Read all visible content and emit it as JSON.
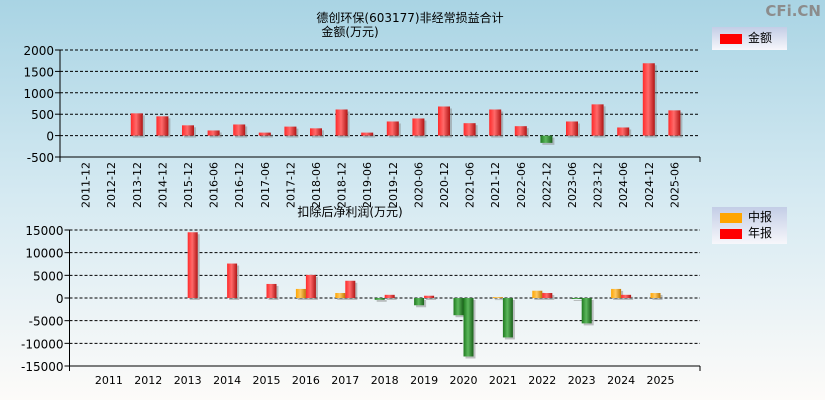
{
  "watermark": "CFi.CN",
  "chart_data": [
    {
      "type": "bar",
      "title": "德创环保(603177)非经常损益合计",
      "subtitle": "金额(万元)",
      "ylim": [
        -500,
        2000
      ],
      "yticks": [
        2000,
        1500,
        1000,
        500,
        0,
        -500
      ],
      "grid": true,
      "legend": "top-right",
      "categories": [
        "2011-12",
        "2012-12",
        "2013-12",
        "2014-12",
        "2015-12",
        "2016-06",
        "2016-12",
        "2017-06",
        "2017-12",
        "2018-06",
        "2018-12",
        "2019-06",
        "2019-12",
        "2020-06",
        "2020-12",
        "2021-06",
        "2021-12",
        "2022-06",
        "2022-12",
        "2023-06",
        "2023-12",
        "2024-06",
        "2024-12",
        "2025-06"
      ],
      "series": [
        {
          "name": "金额",
          "color": "#ff0000",
          "values": [
            null,
            null,
            520,
            450,
            240,
            120,
            260,
            70,
            210,
            170,
            610,
            70,
            330,
            400,
            680,
            290,
            610,
            220,
            -170,
            330,
            730,
            190,
            1690,
            590
          ]
        }
      ],
      "negative_color": "#2e8b2e"
    },
    {
      "type": "bar",
      "title": "扣除后净利润(万元)",
      "ylim": [
        -15000,
        15000
      ],
      "yticks": [
        15000,
        10000,
        5000,
        0,
        -5000,
        -10000,
        -15000
      ],
      "grid": true,
      "legend": "top-right",
      "categories": [
        "2011",
        "2012",
        "2013",
        "2014",
        "2015",
        "2016",
        "2017",
        "2018",
        "2019",
        "2020",
        "2021",
        "2022",
        "2023",
        "2024",
        "2025"
      ],
      "series": [
        {
          "name": "中报",
          "color": "#ffa500",
          "values": [
            null,
            null,
            null,
            null,
            null,
            2000,
            1100,
            -400,
            -1600,
            -3800,
            200,
            1600,
            -200,
            2000,
            1100
          ]
        },
        {
          "name": "年报",
          "color": "#ff0000",
          "values": [
            null,
            null,
            14500,
            7600,
            3100,
            5100,
            3800,
            700,
            500,
            -12900,
            -8700,
            1100,
            -5600,
            700,
            null
          ]
        }
      ],
      "negative_color": "#2e8b2e"
    }
  ]
}
